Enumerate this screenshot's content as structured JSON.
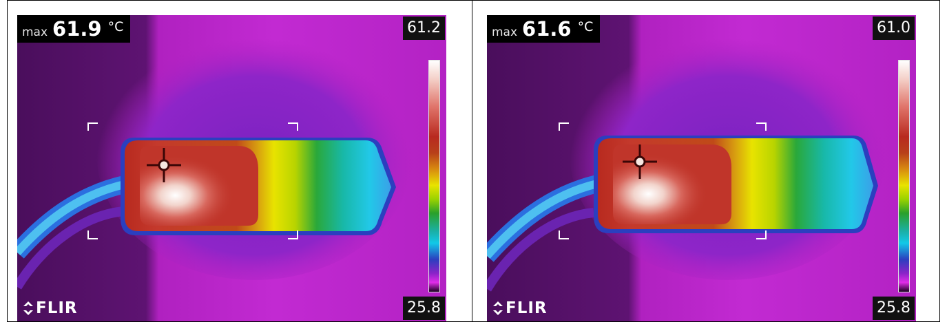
{
  "panels": [
    {
      "max_label": "max",
      "max_value": "61.9",
      "max_unit": "°C",
      "scale_max": "61.2",
      "scale_min": "25.8",
      "logo_text": "FLIR"
    },
    {
      "max_label": "max",
      "max_value": "61.6",
      "max_unit": "°C",
      "scale_max": "61.0",
      "scale_min": "25.8",
      "logo_text": "FLIR"
    }
  ],
  "colors": {
    "background_magenta": "#b821c8",
    "cold_purple": "#5a1070",
    "hot_white": "#ffffff",
    "hot_red": "#b82a1f",
    "warm_yellow": "#e8e300",
    "mid_green": "#2aa02a",
    "cool_cyan": "#12c8e8",
    "cable_blue": "#2b6fe0"
  }
}
